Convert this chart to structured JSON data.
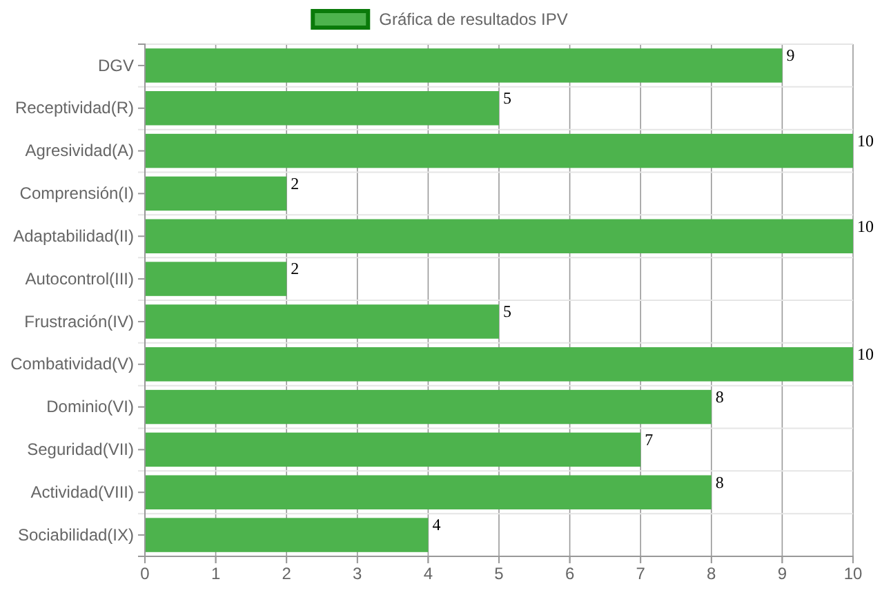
{
  "chart_data": {
    "type": "bar",
    "orientation": "horizontal",
    "categories": [
      "DGV",
      "Receptividad(R)",
      "Agresividad(A)",
      "Comprensión(I)",
      "Adaptabilidad(II)",
      "Autocontrol(III)",
      "Frustración(IV)",
      "Combatividad(V)",
      "Dominio(VI)",
      "Seguridad(VII)",
      "Actividad(VIII)",
      "Sociabilidad(IX)"
    ],
    "series": [
      {
        "name": "Gráfica de resultados IPV",
        "color": "#4db34d",
        "values": [
          9,
          5,
          10,
          2,
          10,
          2,
          5,
          10,
          8,
          7,
          8,
          4
        ]
      }
    ],
    "xlim": [
      0,
      10
    ],
    "xticks": [
      0,
      1,
      2,
      3,
      4,
      5,
      6,
      7,
      8,
      9,
      10
    ],
    "grid": true,
    "legend": "top",
    "data_labels": true
  }
}
